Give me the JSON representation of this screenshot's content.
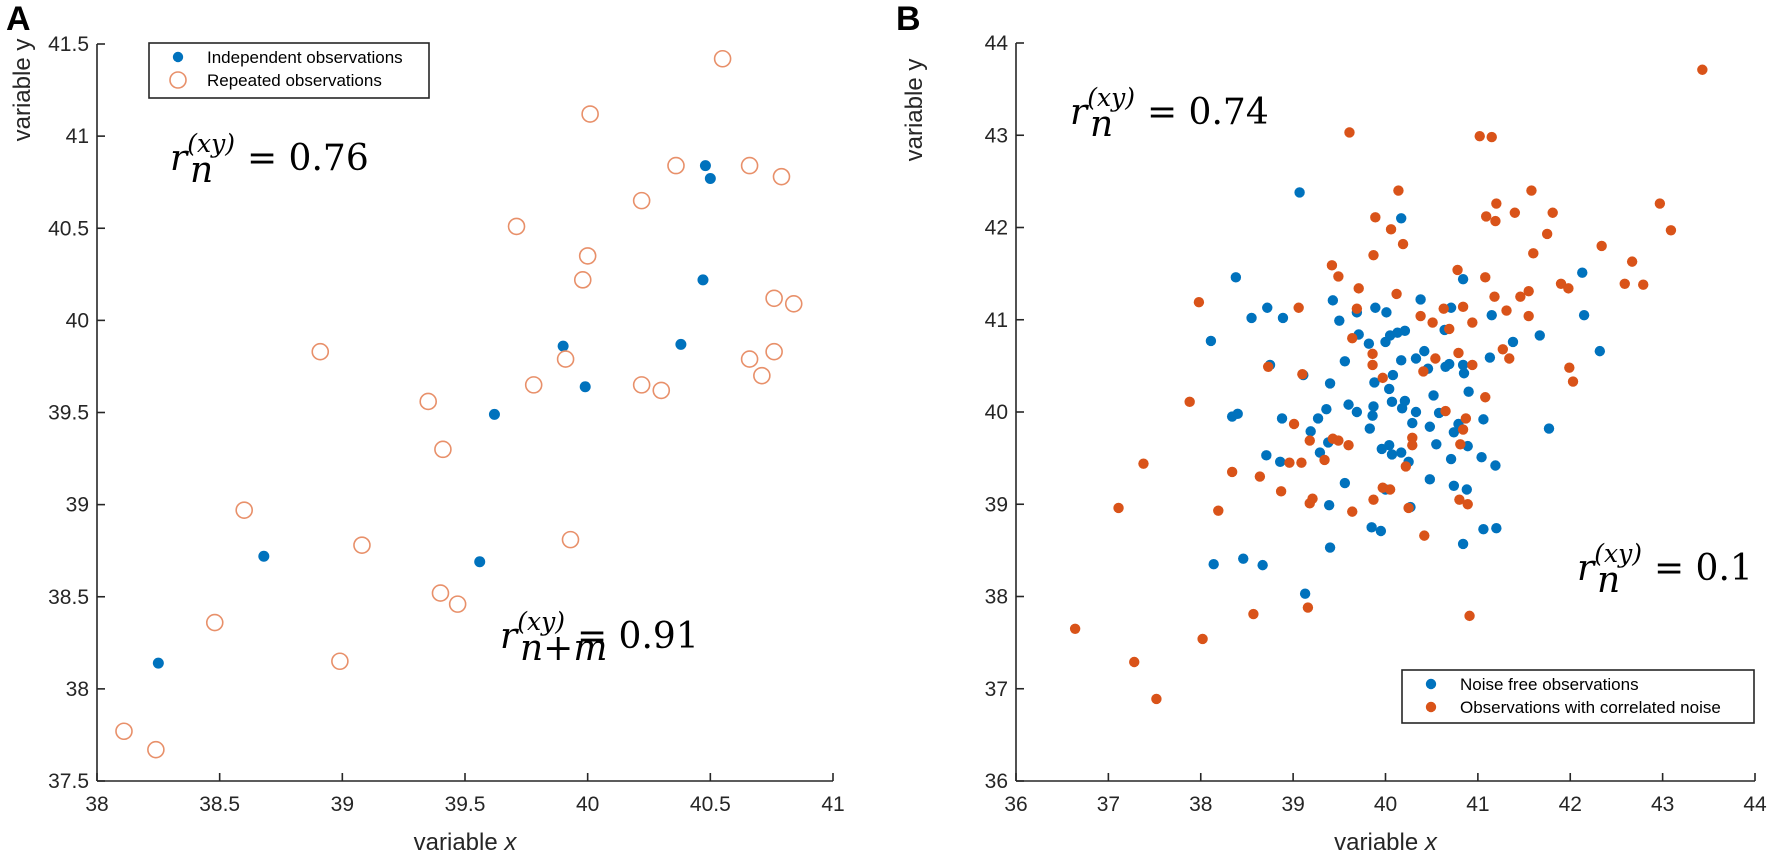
{
  "colors": {
    "blue": "#0072BD",
    "orange": "#D95319",
    "open_orange": "#E8906A",
    "axis": "#262626"
  },
  "chart_data": [
    {
      "panel": "A",
      "type": "scatter",
      "xlabel": "variable x",
      "ylabel": "variable y",
      "xlim": [
        38,
        41
      ],
      "ylim": [
        37.5,
        41.5
      ],
      "xticks": [
        "38",
        "38.5",
        "39",
        "39.5",
        "40",
        "40.5",
        "41"
      ],
      "yticks": [
        "37.5",
        "38",
        "38.5",
        "39",
        "39.5",
        "40",
        "40.5",
        "41",
        "41.5"
      ],
      "grid": false,
      "legend_position": "top-left",
      "annotations": [
        {
          "r": "r",
          "sub": "n",
          "sup": "(xy)",
          "value": "= 0.76"
        },
        {
          "r": "r",
          "sub": "n+m",
          "sup": "(xy)",
          "value": "= 0.91"
        }
      ],
      "series": [
        {
          "name": "Independent observations",
          "marker": "filled",
          "color": "#0072BD",
          "points": [
            [
              38.25,
              38.14
            ],
            [
              38.68,
              38.72
            ],
            [
              39.62,
              39.49
            ],
            [
              39.56,
              38.69
            ],
            [
              39.9,
              39.86
            ],
            [
              39.99,
              39.64
            ],
            [
              40.38,
              39.87
            ],
            [
              40.47,
              40.22
            ],
            [
              40.48,
              40.84
            ],
            [
              40.5,
              40.77
            ]
          ]
        },
        {
          "name": "Repeated observations",
          "marker": "open",
          "color": "#E8906A",
          "points": [
            [
              38.11,
              37.77
            ],
            [
              38.24,
              37.67
            ],
            [
              38.48,
              38.36
            ],
            [
              38.6,
              38.97
            ],
            [
              38.91,
              39.83
            ],
            [
              38.99,
              38.15
            ],
            [
              39.08,
              38.78
            ],
            [
              39.35,
              39.56
            ],
            [
              39.41,
              39.3
            ],
            [
              39.4,
              38.52
            ],
            [
              39.47,
              38.46
            ],
            [
              39.71,
              40.51
            ],
            [
              39.78,
              39.65
            ],
            [
              39.91,
              39.79
            ],
            [
              39.93,
              38.81
            ],
            [
              39.98,
              40.22
            ],
            [
              40.0,
              40.35
            ],
            [
              40.01,
              41.12
            ],
            [
              40.22,
              40.65
            ],
            [
              40.22,
              39.65
            ],
            [
              40.3,
              39.62
            ],
            [
              40.36,
              40.84
            ],
            [
              40.55,
              41.42
            ],
            [
              40.66,
              40.84
            ],
            [
              40.79,
              40.78
            ],
            [
              40.76,
              40.12
            ],
            [
              40.84,
              40.09
            ],
            [
              40.76,
              39.83
            ],
            [
              40.66,
              39.79
            ],
            [
              40.71,
              39.7
            ]
          ]
        }
      ]
    },
    {
      "panel": "B",
      "type": "scatter",
      "xlabel": "variable x",
      "ylabel": "variable  y",
      "xlim": [
        36,
        44
      ],
      "ylim": [
        36,
        44
      ],
      "xticks": [
        "36",
        "37",
        "38",
        "39",
        "40",
        "41",
        "42",
        "43",
        "44"
      ],
      "yticks": [
        "36",
        "37",
        "38",
        "39",
        "40",
        "41",
        "42",
        "43",
        "44"
      ],
      "grid": false,
      "legend_position": "bottom-right",
      "annotations": [
        {
          "r": "r",
          "sub": "n",
          "sup": "(xy)",
          "value": "= 0.74"
        },
        {
          "r": "r",
          "sub": "n",
          "sup": "(xy)",
          "value": "= 0.1"
        }
      ],
      "series": [
        {
          "name": "Noise free observations",
          "marker": "filled",
          "color": "#0072BD",
          "points": [
            [
              39.07,
              42.38
            ],
            [
              40.17,
              42.1
            ],
            [
              38.38,
              41.46
            ],
            [
              40.84,
              41.44
            ],
            [
              42.13,
              41.51
            ],
            [
              39.43,
              41.21
            ],
            [
              40.38,
              41.22
            ],
            [
              38.72,
              41.13
            ],
            [
              38.55,
              41.02
            ],
            [
              38.89,
              41.02
            ],
            [
              39.5,
              40.99
            ],
            [
              39.69,
              41.08
            ],
            [
              39.89,
              41.13
            ],
            [
              40.01,
              41.08
            ],
            [
              40.71,
              41.13
            ],
            [
              41.15,
              41.05
            ],
            [
              42.15,
              41.05
            ],
            [
              39.71,
              40.84
            ],
            [
              39.82,
              40.74
            ],
            [
              40.0,
              40.76
            ],
            [
              40.05,
              40.83
            ],
            [
              40.13,
              40.86
            ],
            [
              40.21,
              40.88
            ],
            [
              40.64,
              40.89
            ],
            [
              41.67,
              40.83
            ],
            [
              41.38,
              40.76
            ],
            [
              38.11,
              40.77
            ],
            [
              42.32,
              40.66
            ],
            [
              40.42,
              40.66
            ],
            [
              40.33,
              40.58
            ],
            [
              40.17,
              40.56
            ],
            [
              41.13,
              40.59
            ],
            [
              39.56,
              40.55
            ],
            [
              38.75,
              40.51
            ],
            [
              40.65,
              40.49
            ],
            [
              40.69,
              40.52
            ],
            [
              40.84,
              40.51
            ],
            [
              40.85,
              40.42
            ],
            [
              40.46,
              40.47
            ],
            [
              39.11,
              40.4
            ],
            [
              40.08,
              40.4
            ],
            [
              39.4,
              40.31
            ],
            [
              39.88,
              40.32
            ],
            [
              40.52,
              40.18
            ],
            [
              40.9,
              40.22
            ],
            [
              40.04,
              40.25
            ],
            [
              40.07,
              40.11
            ],
            [
              40.21,
              40.12
            ],
            [
              40.18,
              40.04
            ],
            [
              39.6,
              40.08
            ],
            [
              39.87,
              40.06
            ],
            [
              39.36,
              40.03
            ],
            [
              40.33,
              40.0
            ],
            [
              39.69,
              40.0
            ],
            [
              38.34,
              39.95
            ],
            [
              38.4,
              39.98
            ],
            [
              38.88,
              39.93
            ],
            [
              39.86,
              39.96
            ],
            [
              40.58,
              39.99
            ],
            [
              39.27,
              39.93
            ],
            [
              41.06,
              39.92
            ],
            [
              40.29,
              39.88
            ],
            [
              39.19,
              39.79
            ],
            [
              39.83,
              39.82
            ],
            [
              40.48,
              39.84
            ],
            [
              40.79,
              39.87
            ],
            [
              40.74,
              39.78
            ],
            [
              41.77,
              39.82
            ],
            [
              39.38,
              39.67
            ],
            [
              40.55,
              39.65
            ],
            [
              40.89,
              39.63
            ],
            [
              39.96,
              39.6
            ],
            [
              40.04,
              39.64
            ],
            [
              40.07,
              39.54
            ],
            [
              40.17,
              39.56
            ],
            [
              39.29,
              39.56
            ],
            [
              38.71,
              39.53
            ],
            [
              38.86,
              39.46
            ],
            [
              40.71,
              39.49
            ],
            [
              41.04,
              39.51
            ],
            [
              40.25,
              39.46
            ],
            [
              41.19,
              39.42
            ],
            [
              39.56,
              39.23
            ],
            [
              40.48,
              39.27
            ],
            [
              40.74,
              39.2
            ],
            [
              40.88,
              39.16
            ],
            [
              40.0,
              39.16
            ],
            [
              39.39,
              38.99
            ],
            [
              40.27,
              38.97
            ],
            [
              39.85,
              38.75
            ],
            [
              39.95,
              38.71
            ],
            [
              41.06,
              38.73
            ],
            [
              41.2,
              38.74
            ],
            [
              40.84,
              38.57
            ],
            [
              39.4,
              38.53
            ],
            [
              38.14,
              38.35
            ],
            [
              38.46,
              38.41
            ],
            [
              38.67,
              38.34
            ],
            [
              39.13,
              38.03
            ]
          ]
        },
        {
          "name": "Observations with correlated noise",
          "marker": "filled",
          "color": "#D95319",
          "points": [
            [
              43.43,
              43.71
            ],
            [
              39.61,
              43.03
            ],
            [
              41.02,
              42.99
            ],
            [
              41.15,
              42.98
            ],
            [
              40.14,
              42.4
            ],
            [
              41.58,
              42.4
            ],
            [
              41.2,
              42.26
            ],
            [
              42.97,
              42.26
            ],
            [
              39.89,
              42.11
            ],
            [
              41.09,
              42.12
            ],
            [
              41.19,
              42.07
            ],
            [
              41.4,
              42.16
            ],
            [
              41.81,
              42.16
            ],
            [
              40.06,
              41.98
            ],
            [
              43.09,
              41.97
            ],
            [
              40.19,
              41.82
            ],
            [
              41.75,
              41.93
            ],
            [
              42.34,
              41.8
            ],
            [
              39.87,
              41.7
            ],
            [
              41.6,
              41.72
            ],
            [
              42.67,
              41.63
            ],
            [
              39.42,
              41.59
            ],
            [
              39.49,
              41.47
            ],
            [
              40.78,
              41.54
            ],
            [
              41.08,
              41.46
            ],
            [
              42.59,
              41.39
            ],
            [
              42.79,
              41.38
            ],
            [
              41.9,
              41.39
            ],
            [
              41.98,
              41.34
            ],
            [
              39.71,
              41.34
            ],
            [
              40.12,
              41.28
            ],
            [
              41.55,
              41.31
            ],
            [
              41.46,
              41.25
            ],
            [
              41.18,
              41.25
            ],
            [
              37.98,
              41.19
            ],
            [
              39.06,
              41.13
            ],
            [
              39.69,
              41.12
            ],
            [
              40.63,
              41.12
            ],
            [
              40.84,
              41.14
            ],
            [
              41.31,
              41.1
            ],
            [
              40.38,
              41.04
            ],
            [
              41.55,
              41.04
            ],
            [
              40.51,
              40.97
            ],
            [
              40.94,
              40.97
            ],
            [
              40.69,
              40.9
            ],
            [
              39.64,
              40.8
            ],
            [
              39.86,
              40.63
            ],
            [
              40.79,
              40.64
            ],
            [
              41.27,
              40.68
            ],
            [
              41.34,
              40.58
            ],
            [
              40.54,
              40.58
            ],
            [
              38.73,
              40.49
            ],
            [
              39.86,
              40.51
            ],
            [
              40.94,
              40.51
            ],
            [
              41.99,
              40.48
            ],
            [
              42.03,
              40.33
            ],
            [
              39.97,
              40.37
            ],
            [
              39.1,
              40.41
            ],
            [
              40.41,
              40.44
            ],
            [
              41.08,
              40.16
            ],
            [
              37.88,
              40.11
            ],
            [
              40.65,
              40.01
            ],
            [
              39.01,
              39.87
            ],
            [
              40.87,
              39.93
            ],
            [
              40.84,
              39.81
            ],
            [
              40.29,
              39.72
            ],
            [
              39.43,
              39.71
            ],
            [
              39.49,
              39.69
            ],
            [
              39.18,
              39.69
            ],
            [
              39.6,
              39.64
            ],
            [
              40.29,
              39.64
            ],
            [
              40.81,
              39.65
            ],
            [
              37.38,
              39.44
            ],
            [
              38.34,
              39.35
            ],
            [
              38.96,
              39.45
            ],
            [
              39.09,
              39.45
            ],
            [
              39.34,
              39.48
            ],
            [
              40.22,
              39.41
            ],
            [
              38.64,
              39.3
            ],
            [
              38.87,
              39.14
            ],
            [
              39.97,
              39.18
            ],
            [
              40.05,
              39.16
            ],
            [
              39.87,
              39.05
            ],
            [
              40.8,
              39.05
            ],
            [
              40.89,
              39.0
            ],
            [
              39.21,
              39.06
            ],
            [
              39.18,
              39.01
            ],
            [
              37.11,
              38.96
            ],
            [
              38.19,
              38.93
            ],
            [
              39.64,
              38.92
            ],
            [
              40.25,
              38.96
            ],
            [
              40.42,
              38.66
            ],
            [
              38.57,
              37.81
            ],
            [
              39.16,
              37.88
            ],
            [
              40.91,
              37.79
            ],
            [
              36.64,
              37.65
            ],
            [
              38.02,
              37.54
            ],
            [
              37.28,
              37.29
            ],
            [
              37.52,
              36.89
            ]
          ]
        }
      ]
    }
  ]
}
